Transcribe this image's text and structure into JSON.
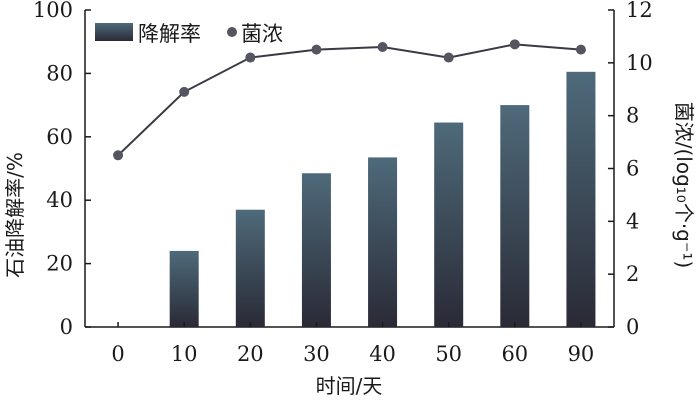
{
  "chart_data": {
    "type": "bar+line",
    "categories": [
      "0",
      "10",
      "20",
      "30",
      "40",
      "50",
      "60",
      "90"
    ],
    "series": [
      {
        "name": "降解率",
        "type": "bar",
        "axis": "left",
        "values": [
          0,
          24,
          37,
          48.5,
          53.5,
          64.5,
          70,
          80.5
        ]
      },
      {
        "name": "菌浓",
        "type": "line",
        "axis": "right",
        "values": [
          6.5,
          8.9,
          10.2,
          10.5,
          10.6,
          10.2,
          10.7,
          10.5
        ]
      }
    ],
    "xlabel": "时间/天",
    "ylabel_left": "石油降解率/%",
    "ylabel_right": "菌浓/(log₁₀个·g⁻¹)",
    "ylim_left": [
      0,
      100
    ],
    "yticks_left": [
      "0",
      "20",
      "40",
      "60",
      "80",
      "100"
    ],
    "ylim_right": [
      0,
      12
    ],
    "yticks_right": [
      "0",
      "2",
      "4",
      "6",
      "8",
      "10",
      "12"
    ],
    "legend": [
      "降解率",
      "菌浓"
    ],
    "legend_position": "top-left",
    "grid": false,
    "colors": {
      "bar_top": "#4e6a7a",
      "bar_bottom": "#2a2a36",
      "line": "#3a3a44",
      "marker": "#555560",
      "axis": "#1a1a1a"
    }
  }
}
